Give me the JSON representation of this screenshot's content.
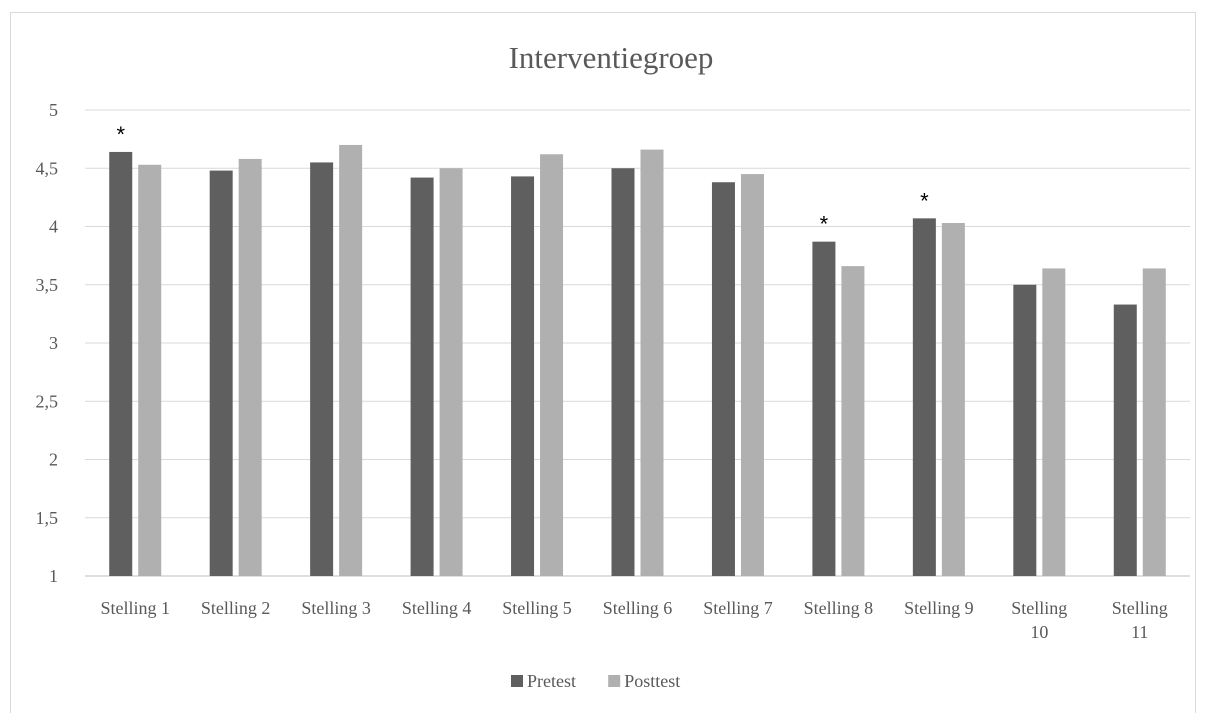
{
  "chart_data": {
    "type": "bar",
    "title": "Interventiegroep",
    "xlabel": "",
    "ylabel": "",
    "ylim": [
      1,
      5
    ],
    "yticks": [
      "1",
      "1,5",
      "2",
      "2,5",
      "3",
      "3,5",
      "4",
      "4,5",
      "5"
    ],
    "ytick_values": [
      1,
      1.5,
      2,
      2.5,
      3,
      3.5,
      4,
      4.5,
      5
    ],
    "grid": true,
    "legend_position": "bottom",
    "categories": [
      [
        "Stelling 1"
      ],
      [
        "Stelling 2"
      ],
      [
        "Stelling 3"
      ],
      [
        "Stelling 4"
      ],
      [
        "Stelling 5"
      ],
      [
        "Stelling 6"
      ],
      [
        "Stelling 7"
      ],
      [
        "Stelling 8"
      ],
      [
        "Stelling 9"
      ],
      [
        "Stelling",
        "10"
      ],
      [
        "Stelling",
        "11"
      ]
    ],
    "series": [
      {
        "name": "Pretest",
        "color": "#5f5f5f",
        "values": [
          4.64,
          4.48,
          4.55,
          4.42,
          4.43,
          4.5,
          4.38,
          3.87,
          4.07,
          3.5,
          3.33
        ]
      },
      {
        "name": "Posttest",
        "color": "#b0b0b0",
        "values": [
          4.53,
          4.58,
          4.7,
          4.5,
          4.62,
          4.66,
          4.45,
          3.66,
          4.03,
          3.64,
          3.64
        ]
      }
    ],
    "annotations": [
      {
        "text": "*",
        "category_index": 0
      },
      {
        "text": "*",
        "category_index": 7
      },
      {
        "text": "*",
        "category_index": 8
      }
    ]
  }
}
